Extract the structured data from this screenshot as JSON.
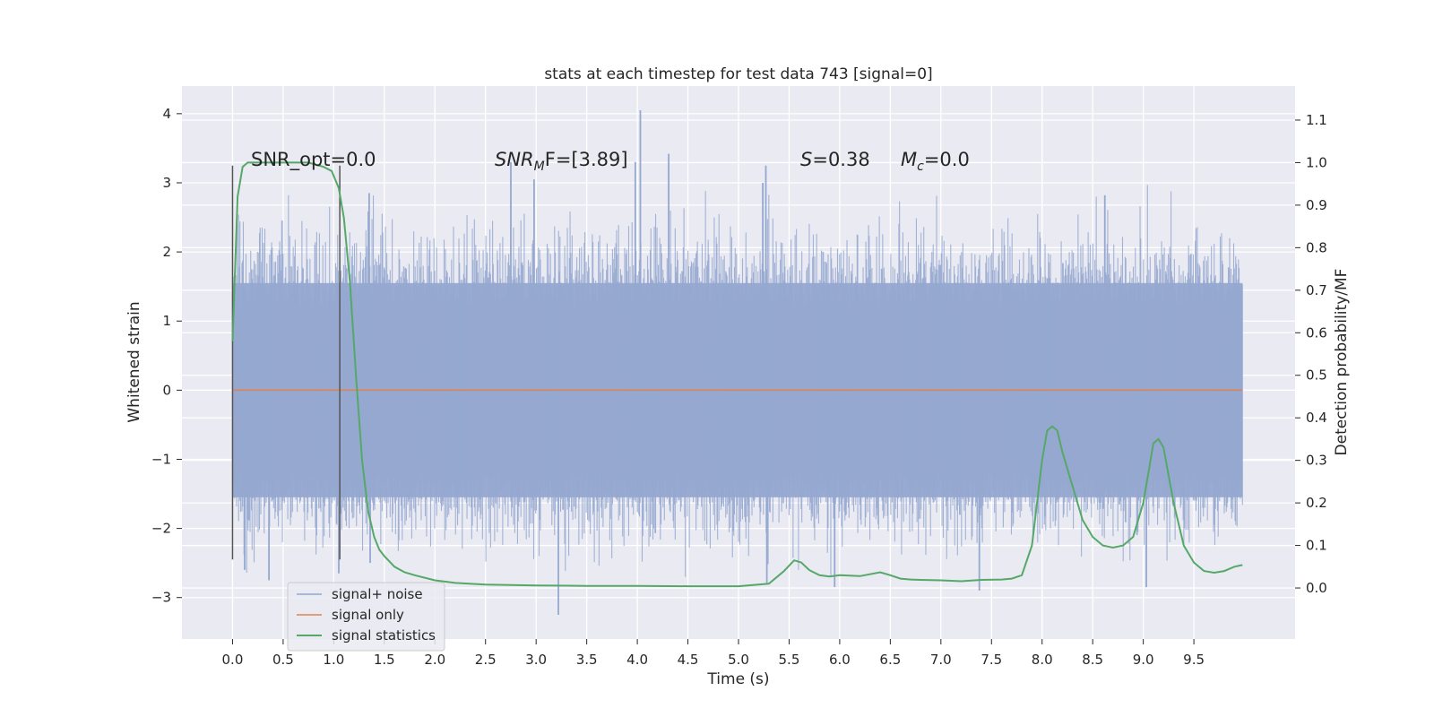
{
  "chart_data": {
    "type": "line",
    "title": "stats at each timestep for test data 743 [signal=0]",
    "xlabel": "Time (s)",
    "ylabel": "Whitened strain",
    "y2label": "Detection probability/MF",
    "xlim": [
      -0.5,
      10.5
    ],
    "ylim": [
      -3.6,
      4.4
    ],
    "y2lim": [
      -0.12,
      1.18
    ],
    "xticks": [
      "0.0",
      "0.5",
      "1.0",
      "1.5",
      "2.0",
      "2.5",
      "3.0",
      "3.5",
      "4.0",
      "4.5",
      "5.0",
      "5.5",
      "6.0",
      "6.5",
      "7.0",
      "7.5",
      "8.0",
      "8.5",
      "9.0",
      "9.5"
    ],
    "yticks": [
      "4",
      "3",
      "2",
      "1",
      "0",
      "−1",
      "−2",
      "−3"
    ],
    "y2ticks": [
      "1.1",
      "1.0",
      "0.9",
      "0.8",
      "0.7",
      "0.6",
      "0.5",
      "0.4",
      "0.3",
      "0.2",
      "0.1",
      "0.0"
    ],
    "grid": true,
    "legend_position": "lower-left",
    "annotations": {
      "snr_opt": "SNR_opt=0.0",
      "snr_mf_prefix": "SNR",
      "snr_mf_sub": "M",
      "snr_mf_suffix": "F=[3.89]",
      "s_prefix": "S",
      "s_value": "=0.38",
      "mc_prefix": "M",
      "mc_sub": "c",
      "mc_value": "=0.0"
    },
    "vertical_markers": [
      {
        "x": 0.0,
        "y_from": -2.45,
        "y_to": 3.25
      },
      {
        "x": 1.06,
        "y_from": -2.45,
        "y_to": 3.25
      }
    ],
    "series": [
      {
        "name": "signal+ noise",
        "color": "#95a8d0",
        "axis": "left",
        "kind": "noise",
        "x_range": [
          0.0,
          9.98
        ],
        "core_band": [
          -1.55,
          1.55
        ],
        "spikes": [
          {
            "x": 4.03,
            "y": 4.05
          },
          {
            "x": 4.31,
            "y": 3.42
          },
          {
            "x": 3.98,
            "y": 3.3
          },
          {
            "x": 2.75,
            "y": 3.3
          },
          {
            "x": 5.27,
            "y": 3.25
          },
          {
            "x": 2.98,
            "y": 3.05
          },
          {
            "x": 5.24,
            "y": 3.0
          },
          {
            "x": 3.22,
            "y": -3.25
          },
          {
            "x": 5.28,
            "y": -2.8
          },
          {
            "x": 5.95,
            "y": -2.85
          },
          {
            "x": 7.38,
            "y": -2.9
          },
          {
            "x": 9.03,
            "y": -2.85
          },
          {
            "x": 0.12,
            "y": -2.6
          },
          {
            "x": 0.36,
            "y": -2.75
          },
          {
            "x": 1.05,
            "y": -2.65
          },
          {
            "x": 1.36,
            "y": -2.5
          },
          {
            "x": 1.35,
            "y": 2.85
          },
          {
            "x": 8.62,
            "y": 2.82
          }
        ]
      },
      {
        "name": "signal only",
        "color": "#dd8452",
        "axis": "left",
        "x": [
          0.0,
          9.98
        ],
        "y": [
          0.0,
          0.0
        ]
      },
      {
        "name": "signal statistics",
        "color": "#55a868",
        "axis": "right",
        "x": [
          0.0,
          0.05,
          0.1,
          0.15,
          0.25,
          0.5,
          0.75,
          0.9,
          0.98,
          1.05,
          1.1,
          1.16,
          1.22,
          1.28,
          1.34,
          1.4,
          1.45,
          1.5,
          1.6,
          1.7,
          1.8,
          2.0,
          2.2,
          2.5,
          3.0,
          3.5,
          4.0,
          4.5,
          5.0,
          5.3,
          5.45,
          5.55,
          5.62,
          5.7,
          5.8,
          5.9,
          6.0,
          6.2,
          6.4,
          6.5,
          6.6,
          6.7,
          6.8,
          7.0,
          7.2,
          7.4,
          7.6,
          7.7,
          7.8,
          7.9,
          8.0,
          8.05,
          8.1,
          8.15,
          8.2,
          8.3,
          8.4,
          8.5,
          8.6,
          8.7,
          8.8,
          8.9,
          9.0,
          9.05,
          9.1,
          9.15,
          9.2,
          9.3,
          9.4,
          9.5,
          9.6,
          9.7,
          9.8,
          9.9,
          9.98
        ],
        "y": [
          0.58,
          0.92,
          0.99,
          1.0,
          1.0,
          1.0,
          1.0,
          0.99,
          0.98,
          0.94,
          0.87,
          0.72,
          0.5,
          0.3,
          0.18,
          0.12,
          0.09,
          0.075,
          0.05,
          0.037,
          0.03,
          0.018,
          0.012,
          0.008,
          0.006,
          0.005,
          0.005,
          0.004,
          0.004,
          0.01,
          0.04,
          0.065,
          0.06,
          0.042,
          0.03,
          0.027,
          0.03,
          0.028,
          0.037,
          0.03,
          0.022,
          0.02,
          0.019,
          0.018,
          0.016,
          0.019,
          0.02,
          0.022,
          0.03,
          0.1,
          0.3,
          0.37,
          0.38,
          0.37,
          0.32,
          0.24,
          0.16,
          0.12,
          0.1,
          0.095,
          0.1,
          0.12,
          0.2,
          0.27,
          0.34,
          0.35,
          0.33,
          0.2,
          0.1,
          0.06,
          0.04,
          0.036,
          0.04,
          0.05,
          0.054
        ]
      }
    ]
  }
}
